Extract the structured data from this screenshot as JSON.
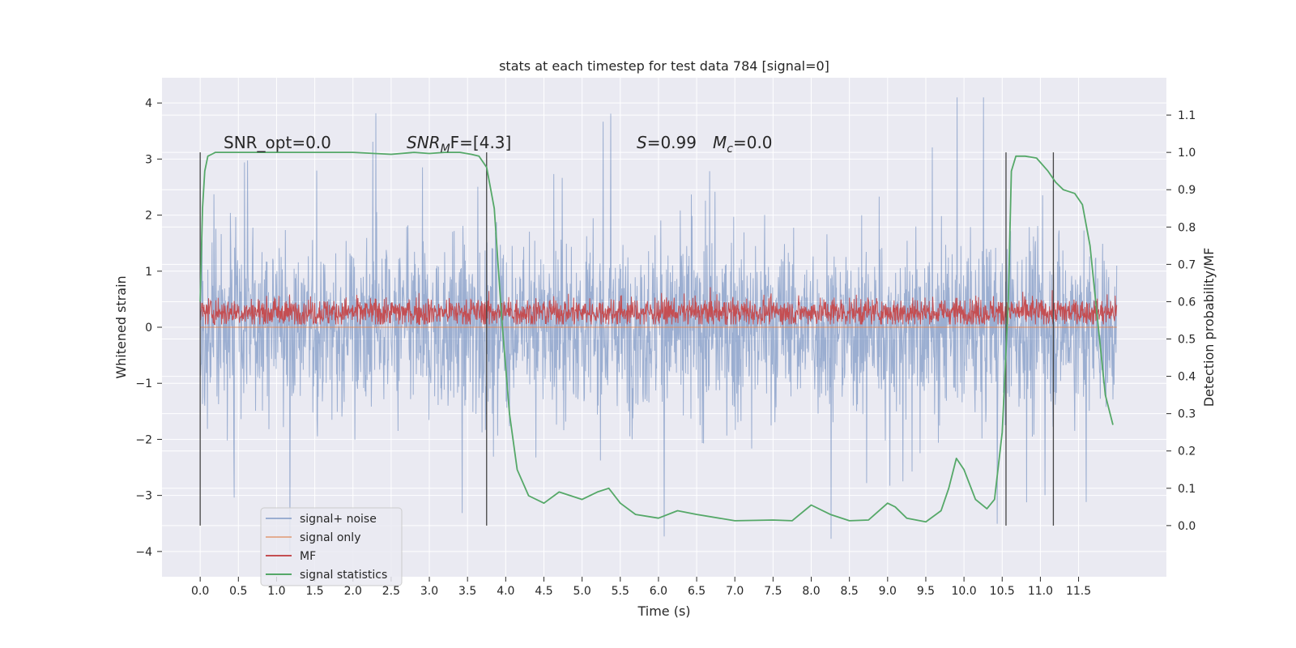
{
  "chart_data": {
    "type": "line",
    "title": "stats at each timestep for test data 784 [signal=0]",
    "xlabel": "Time (s)",
    "ylabel": "Whitened strain",
    "y2label": "Detection probability/MF",
    "xlim": [
      -0.5,
      12.65
    ],
    "ylim": [
      -4.45,
      4.45
    ],
    "y2lim": [
      -0.137,
      1.2
    ],
    "xticks": [
      "0.0",
      "0.5",
      "1.0",
      "1.5",
      "2.0",
      "2.5",
      "3.0",
      "3.5",
      "4.0",
      "4.5",
      "5.0",
      "5.5",
      "6.0",
      "6.5",
      "7.0",
      "7.5",
      "8.0",
      "8.5",
      "9.0",
      "9.5",
      "10.0",
      "10.5",
      "11.0",
      "11.5"
    ],
    "yticks": [
      "4",
      "3",
      "2",
      "1",
      "0",
      "−1",
      "−2",
      "−3",
      "−4"
    ],
    "y2ticks": [
      "1.1",
      "1.0",
      "0.9",
      "0.8",
      "0.7",
      "0.6",
      "0.5",
      "0.4",
      "0.3",
      "0.2",
      "0.1",
      "0.0"
    ],
    "grid": true,
    "legend_position": "lower-left",
    "colors": {
      "signal_noise": "#4c72b0",
      "signal_only": "#dd8452",
      "mf": "#c44e52",
      "statistics": "#55a868",
      "markers": "#444444",
      "plot_bg": "#eaeaf2",
      "grid": "#ffffff"
    },
    "annotations": {
      "snr_opt": "SNR_opt=0.0",
      "snr_mf_main": "SNR",
      "snr_mf_sub": "M",
      "snr_mf_rest": "F=[4.3]",
      "s_label": "S",
      "s_value": "=0.99",
      "mc_main": "M",
      "mc_sub": "c",
      "mc_value": "=0.0"
    },
    "series": [
      {
        "name": "signal+ noise",
        "kind": "noise",
        "t_range": [
          0.0,
          12.0
        ],
        "approx_std": 1.0,
        "approx_range": [
          -4.0,
          4.1
        ]
      },
      {
        "name": "signal only",
        "kind": "flat",
        "values": [
          0.0
        ]
      },
      {
        "name": "MF",
        "kind": "noise",
        "t_range": [
          0.0,
          12.0
        ],
        "approx_mean": 0.27,
        "approx_range": [
          0.05,
          0.95
        ]
      },
      {
        "name": "signal statistics",
        "axis": "right",
        "x": [
          0.0,
          0.03,
          0.06,
          0.1,
          0.15,
          0.2,
          0.3,
          0.5,
          1.0,
          2.0,
          2.5,
          2.8,
          3.0,
          3.2,
          3.4,
          3.55,
          3.65,
          3.75,
          3.85,
          3.95,
          4.05,
          4.15,
          4.3,
          4.5,
          4.7,
          4.85,
          5.0,
          5.2,
          5.35,
          5.5,
          5.7,
          6.0,
          6.25,
          6.5,
          7.0,
          7.5,
          7.75,
          8.0,
          8.25,
          8.5,
          8.75,
          9.0,
          9.1,
          9.25,
          9.5,
          9.7,
          9.8,
          9.9,
          10.0,
          10.15,
          10.3,
          10.4,
          10.5,
          10.58,
          10.62,
          10.68,
          10.8,
          10.95,
          11.1,
          11.2,
          11.3,
          11.45,
          11.55,
          11.65,
          11.75,
          11.85,
          11.95
        ],
        "values": [
          0.6,
          0.85,
          0.95,
          0.99,
          0.995,
          1.0,
          1.0,
          1.0,
          1.0,
          1.0,
          0.995,
          1.0,
          0.997,
          1.0,
          1.0,
          0.995,
          0.99,
          0.96,
          0.85,
          0.55,
          0.3,
          0.15,
          0.08,
          0.06,
          0.09,
          0.08,
          0.07,
          0.09,
          0.1,
          0.06,
          0.03,
          0.02,
          0.04,
          0.03,
          0.013,
          0.015,
          0.013,
          0.055,
          0.03,
          0.013,
          0.015,
          0.06,
          0.05,
          0.02,
          0.01,
          0.04,
          0.1,
          0.18,
          0.15,
          0.07,
          0.045,
          0.07,
          0.25,
          0.6,
          0.95,
          0.99,
          0.99,
          0.985,
          0.95,
          0.92,
          0.9,
          0.89,
          0.86,
          0.75,
          0.55,
          0.35,
          0.27
        ]
      }
    ],
    "vertical_markers": [
      0.0,
      3.75,
      10.55,
      11.17
    ],
    "legend": [
      "signal+ noise",
      "signal only",
      "MF",
      "signal statistics"
    ]
  }
}
